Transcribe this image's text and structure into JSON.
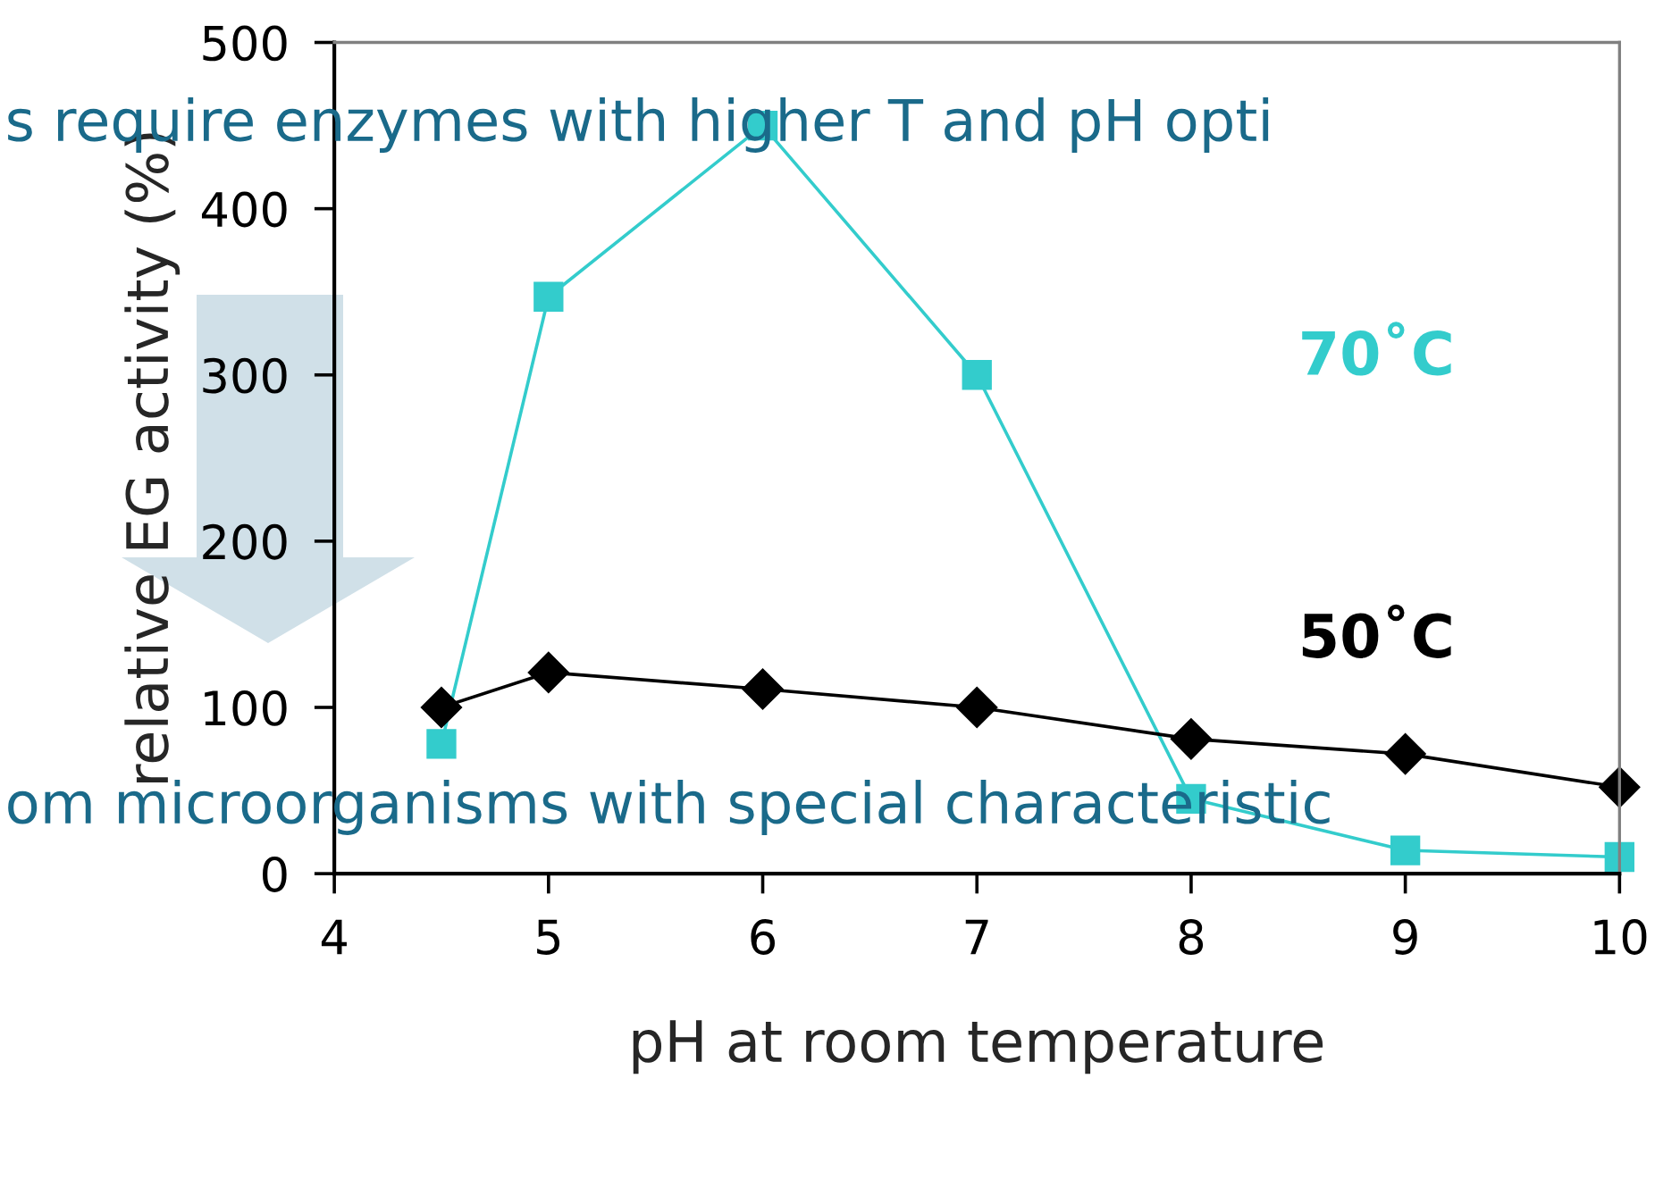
{
  "chart_data": {
    "type": "line",
    "xlabel": "pH at room temperature",
    "ylabel": "relative EG activity (%)",
    "xlim": [
      4,
      10
    ],
    "xticks": [
      4,
      5,
      6,
      7,
      8,
      9,
      10
    ],
    "ylim": [
      0,
      500
    ],
    "yticks": [
      0,
      100,
      {
        "value": 200,
        "label": "200"
      },
      {
        "value": 300,
        "label": "300"
      },
      400,
      500
    ],
    "grid": false,
    "legend": false,
    "line_style": "solid",
    "series": [
      {
        "name": "70˚C",
        "color": "#33cccc",
        "marker": "square",
        "x": [
          4.5,
          5,
          6,
          7,
          8,
          9,
          10
        ],
        "values": [
          78,
          347,
          450,
          300,
          45,
          14,
          10
        ]
      },
      {
        "name": "50˚C",
        "color": "#000000",
        "marker": "diamond",
        "x": [
          4.5,
          5,
          6,
          7,
          8,
          9,
          10
        ],
        "values": [
          100,
          121,
          111,
          100,
          81,
          72,
          52
        ]
      }
    ],
    "annotations": [
      "s require enzymes with higher T and pH opti",
      "om microorganisms with special characteristic"
    ]
  }
}
